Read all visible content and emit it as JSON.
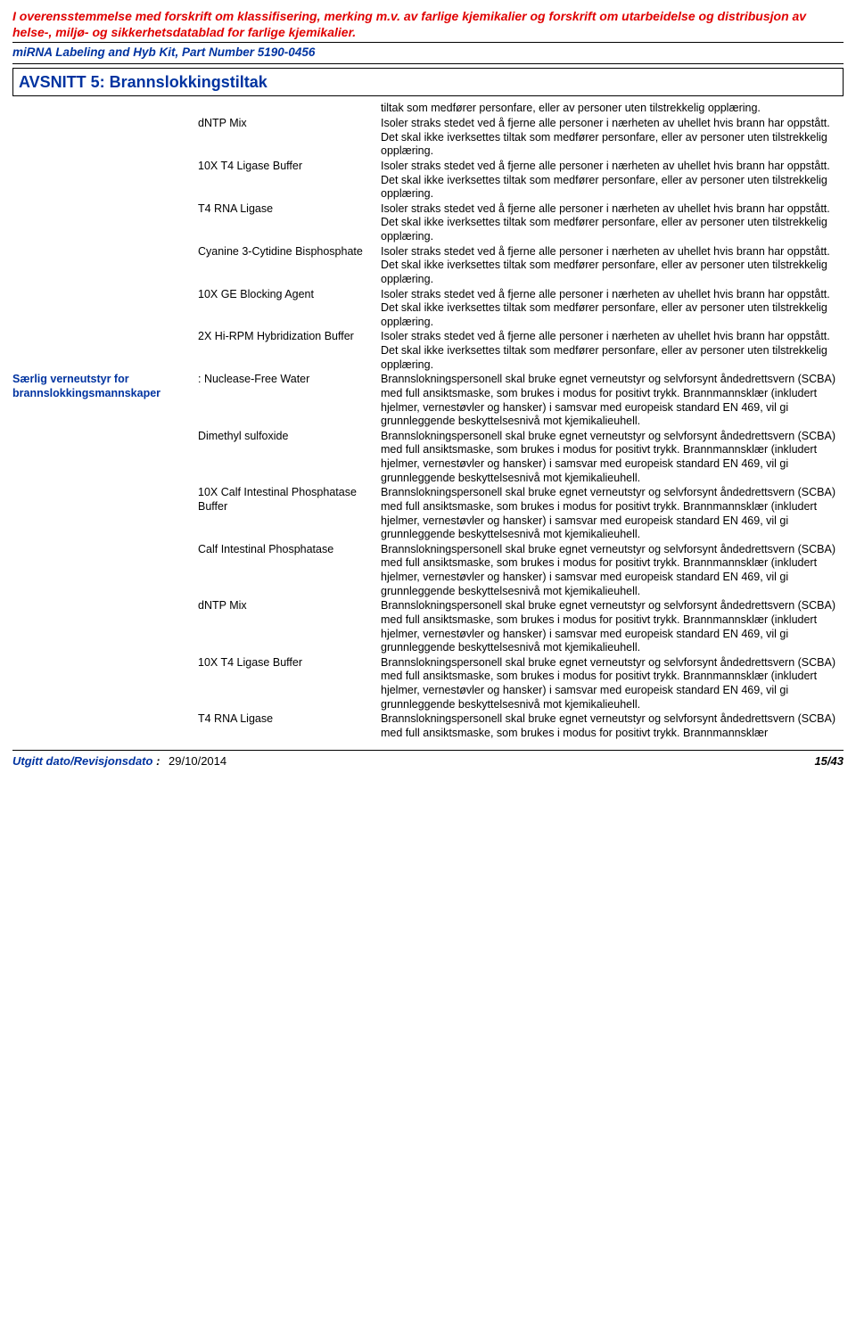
{
  "header": {
    "red": "I overensstemmelse med forskrift om klassifisering, merking m.v. av farlige kjemikalier og forskrift om utarbeidelse og distribusjon av helse-, miljø- og sikkerhetsdatablad for farlige kjemikalier.",
    "blue": "miRNA Labeling and Hyb Kit, Part Number 5190-0456"
  },
  "section_title": "AVSNITT 5: Brannslokkingstiltak",
  "text": {
    "isolate": "Isoler straks stedet ved å fjerne alle personer i nærheten av uhellet hvis brann har oppstått.  Det skal ikke iverksettes tiltak som medfører personfare, eller av personer uten tilstrekkelig opplæring.",
    "isolate_trail": "tiltak som medfører personfare, eller av personer uten tilstrekkelig opplæring.",
    "protect_full": "Brannslokningspersonell skal bruke egnet verneutstyr og selvforsynt åndedrettsvern (SCBA) med full ansiktsmaske, som brukes i modus for positivt trykk.  Brannmannsklær (inkludert hjelmer, vernestøvler og hansker) i samsvar med europeisk standard EN 469, vil gi grunnleggende beskyttelsesnivå mot kjemikalieuhell.",
    "protect_partial": "Brannslokningspersonell skal bruke egnet verneutstyr og selvforsynt åndedrettsvern (SCBA) med full ansiktsmaske, som brukes i modus for positivt trykk.  Brannmannsklær"
  },
  "group1": {
    "items": [
      "dNTP Mix",
      "10X T4 Ligase Buffer",
      "T4 RNA Ligase",
      "Cyanine 3-Cytidine Bisphosphate",
      "10X GE Blocking Agent",
      "2X Hi-RPM Hybridization Buffer"
    ]
  },
  "group2": {
    "label": "Særlig verneutstyr for brannslokkingsmannskaper",
    "items": [
      "Nuclease-Free Water",
      "Dimethyl sulfoxide",
      "10X Calf Intestinal Phosphatase Buffer",
      "Calf Intestinal Phosphatase",
      "dNTP Mix",
      "10X T4 Ligase Buffer",
      "T4 RNA Ligase"
    ]
  },
  "footer": {
    "label": "Utgitt dato/Revisjonsdato",
    "date": "29/10/2014",
    "page": "15/43"
  }
}
